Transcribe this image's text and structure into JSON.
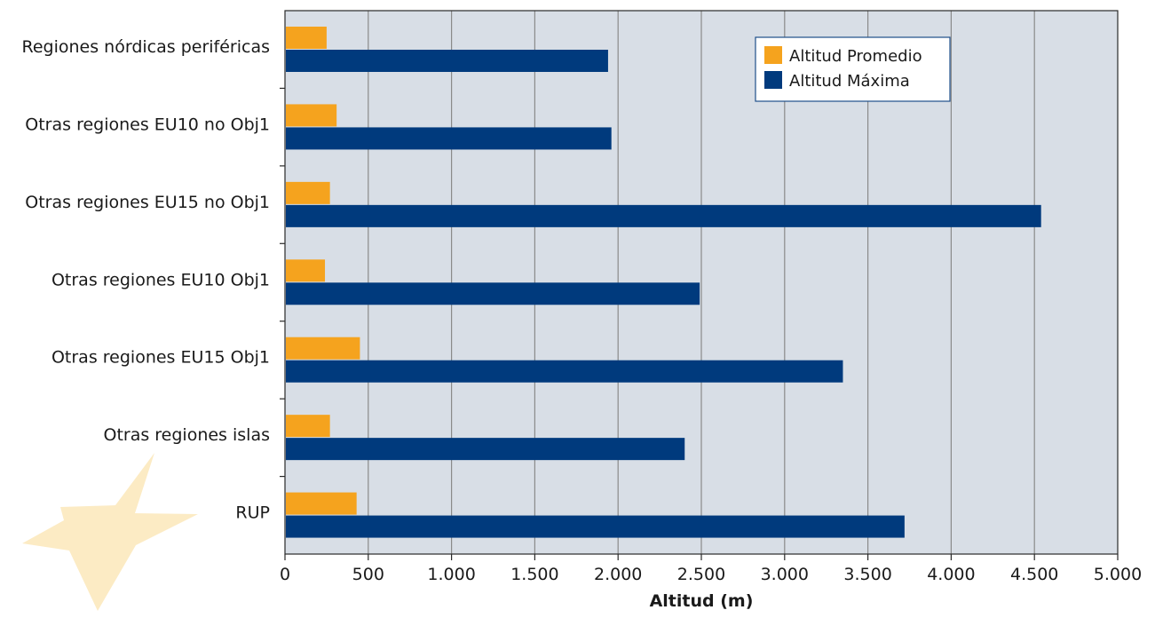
{
  "chart_data": {
    "type": "bar",
    "orientation": "horizontal",
    "categories": [
      "Regiones nórdicas periféricas",
      "Otras regiones EU10 no Obj1",
      "Otras regiones EU15 no Obj1",
      "Otras regiones EU10 Obj1",
      "Otras regiones EU15 Obj1",
      "Otras regiones islas",
      "RUP"
    ],
    "series": [
      {
        "name": "Altitud Promedio",
        "color": "#f5a31e",
        "values": [
          250,
          310,
          270,
          240,
          450,
          270,
          430
        ]
      },
      {
        "name": "Altitud Máxima",
        "color": "#003a7d",
        "values": [
          1940,
          1960,
          4540,
          2490,
          3350,
          2400,
          3720
        ]
      }
    ],
    "xlabel": "Altitud (m)",
    "ylabel": "",
    "xlim": [
      0,
      5000
    ],
    "x_ticks": [
      0,
      500,
      1000,
      1500,
      2000,
      2500,
      3000,
      3500,
      4000,
      4500,
      5000
    ],
    "x_tick_labels": [
      "0",
      "500",
      "1.000",
      "1.500",
      "2.000",
      "2.500",
      "3.000",
      "3.500",
      "4.000",
      "4.500",
      "5.000"
    ],
    "grid": "vertical",
    "legend_position": "top-right",
    "plot_background": "#d8dee6",
    "gridline_color": "#8a8a8a",
    "decoration": "pale yellow star watermark in the bottom-left corner"
  }
}
